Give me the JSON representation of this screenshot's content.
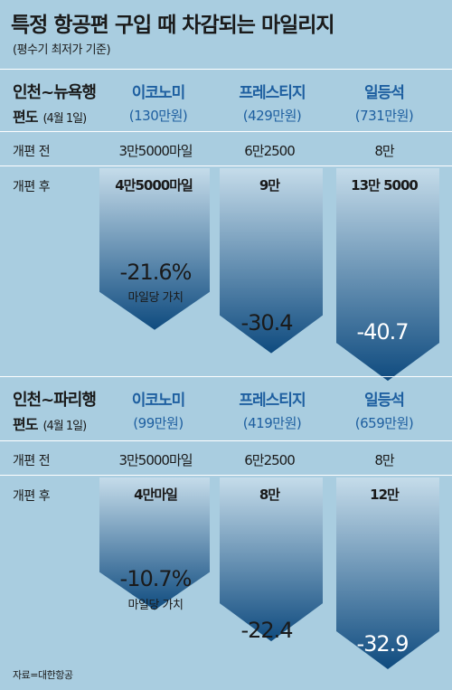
{
  "title": "특정 항공편 구입 때 차감되는 마일리지",
  "subtitle": "(평수기 최저가 기준)",
  "source": "자료=대한항공",
  "row_labels": {
    "before": "개편 전",
    "after": "개편 후"
  },
  "colors": {
    "background": "#a9cde0",
    "accent_text": "#1e5fa0",
    "arrow_light": "#c5dcea",
    "arrow_dark": "#0f4b7f"
  },
  "chart_data": [
    {
      "type": "table",
      "route": "인천~뉴욕행",
      "label": "편도",
      "date": "(4월 1일)",
      "unit": "마일",
      "classes": [
        "이코노미",
        "프레스티지",
        "일등석"
      ],
      "prices": [
        "(130만원)",
        "(429만원)",
        "(731만원)"
      ],
      "before": [
        "3만5000마일",
        "6만2500",
        "8만"
      ],
      "after": [
        "4만5000마일",
        "9만",
        "13만 5000"
      ],
      "before_values": [
        35000,
        62500,
        80000
      ],
      "after_values": [
        45000,
        90000,
        135000
      ],
      "change_pct": [
        -21.6,
        -30.4,
        -40.7
      ],
      "change_labels": [
        "-21.6%",
        "-30.4",
        "-40.7"
      ],
      "change_sublabel": "마일당 가치"
    },
    {
      "type": "table",
      "route": "인천~파리행",
      "label": "편도",
      "date": "(4월 1일)",
      "unit": "마일",
      "classes": [
        "이코노미",
        "프레스티지",
        "일등석"
      ],
      "prices": [
        "(99만원)",
        "(419만원)",
        "(659만원)"
      ],
      "before": [
        "3만5000마일",
        "6만2500",
        "8만"
      ],
      "after": [
        "4만마일",
        "8만",
        "12만"
      ],
      "before_values": [
        35000,
        62500,
        80000
      ],
      "after_values": [
        40000,
        80000,
        120000
      ],
      "change_pct": [
        -10.7,
        -22.4,
        -32.9
      ],
      "change_labels": [
        "-10.7%",
        "-22.4",
        "-32.9"
      ],
      "change_sublabel": "마일당 가치"
    }
  ]
}
